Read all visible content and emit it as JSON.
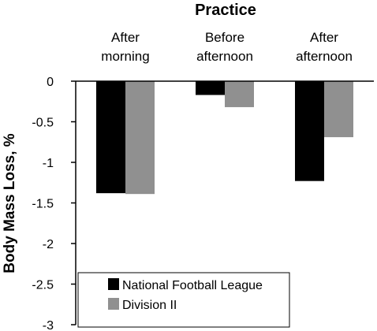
{
  "chart_data": {
    "type": "bar",
    "title": "Practice",
    "xlabel": "",
    "ylabel": "Body Mass Loss, %",
    "categories": [
      [
        "After",
        "morning"
      ],
      [
        "Before",
        "afternoon"
      ],
      [
        "After",
        "afternoon"
      ]
    ],
    "series": [
      {
        "name": "National Football League",
        "color": "#000000",
        "values": [
          -1.38,
          -0.17,
          -1.23
        ]
      },
      {
        "name": "Division II",
        "color": "#909090",
        "values": [
          -1.39,
          -0.32,
          -0.69
        ]
      }
    ],
    "ylim": [
      -3,
      0
    ],
    "yticks": [
      0,
      -0.5,
      -1,
      -1.5,
      -2,
      -2.5,
      -3
    ],
    "ytick_labels": [
      "0",
      "-0.5",
      "-1",
      "-1.5",
      "-2",
      "-2.5",
      "-3"
    ],
    "x_axis_position": "top",
    "grid": false,
    "legend_position": "bottom-left"
  }
}
